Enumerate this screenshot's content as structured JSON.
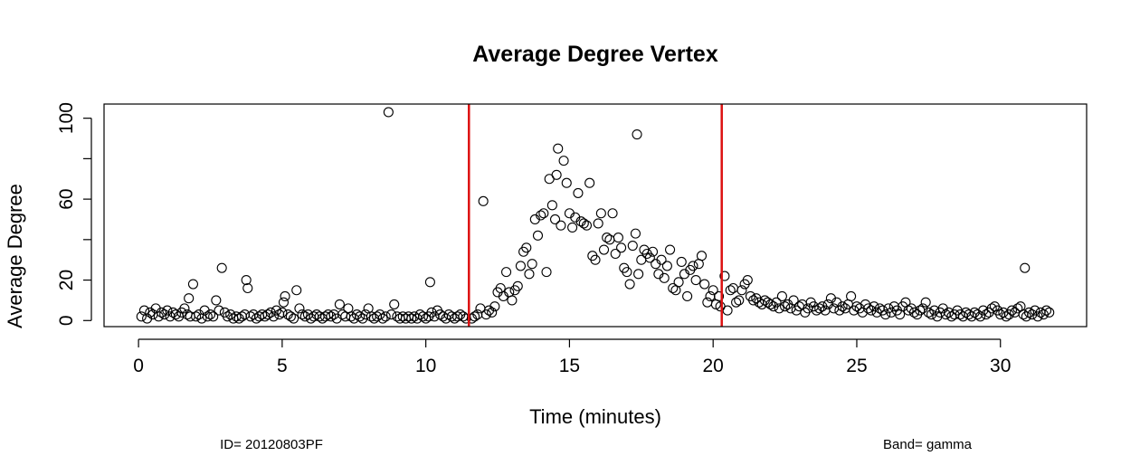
{
  "chart_data": {
    "type": "scatter",
    "title": "Average Degree Vertex",
    "xlabel": "Time (minutes)",
    "ylabel": "Average Degree",
    "xlim": [
      -1.2,
      33
    ],
    "ylim": [
      -3,
      107
    ],
    "x_ticks": [
      0,
      5,
      10,
      15,
      20,
      25,
      30
    ],
    "y_ticks": [
      0,
      20,
      40,
      60,
      80,
      100
    ],
    "y_tick_labels": [
      "0",
      "20",
      "",
      "60",
      "",
      "100"
    ],
    "vlines": [
      {
        "x": 11.5,
        "color": "#dd1111"
      },
      {
        "x": 20.3,
        "color": "#dd1111"
      }
    ],
    "marker": "open-circle",
    "grid": false,
    "footer_left": "ID= 20120803PF",
    "footer_right": "Band= gamma",
    "points": [
      [
        0.1,
        2
      ],
      [
        0.2,
        5
      ],
      [
        0.3,
        1
      ],
      [
        0.4,
        4
      ],
      [
        0.5,
        3
      ],
      [
        0.6,
        6
      ],
      [
        0.7,
        2
      ],
      [
        0.8,
        4
      ],
      [
        0.9,
        3
      ],
      [
        1.0,
        5
      ],
      [
        1.1,
        2
      ],
      [
        1.2,
        4
      ],
      [
        1.3,
        3
      ],
      [
        1.4,
        2
      ],
      [
        1.5,
        4
      ],
      [
        1.6,
        6
      ],
      [
        1.7,
        3
      ],
      [
        1.75,
        11
      ],
      [
        1.8,
        2
      ],
      [
        1.9,
        18
      ],
      [
        2.0,
        2
      ],
      [
        2.1,
        3
      ],
      [
        2.2,
        1
      ],
      [
        2.3,
        5
      ],
      [
        2.4,
        2
      ],
      [
        2.5,
        3
      ],
      [
        2.6,
        2
      ],
      [
        2.7,
        10
      ],
      [
        2.8,
        5
      ],
      [
        2.9,
        26
      ],
      [
        3.0,
        4
      ],
      [
        3.1,
        2
      ],
      [
        3.2,
        3
      ],
      [
        3.3,
        1
      ],
      [
        3.4,
        2
      ],
      [
        3.5,
        1
      ],
      [
        3.6,
        2
      ],
      [
        3.7,
        3
      ],
      [
        3.75,
        20
      ],
      [
        3.8,
        16
      ],
      [
        3.9,
        2
      ],
      [
        4.0,
        3
      ],
      [
        4.1,
        1
      ],
      [
        4.2,
        2
      ],
      [
        4.3,
        3
      ],
      [
        4.4,
        2
      ],
      [
        4.5,
        3
      ],
      [
        4.6,
        4
      ],
      [
        4.7,
        2
      ],
      [
        4.8,
        5
      ],
      [
        4.9,
        3
      ],
      [
        5.0,
        4
      ],
      [
        5.05,
        9
      ],
      [
        5.1,
        12
      ],
      [
        5.2,
        3
      ],
      [
        5.3,
        2
      ],
      [
        5.4,
        1
      ],
      [
        5.5,
        15
      ],
      [
        5.6,
        6
      ],
      [
        5.7,
        3
      ],
      [
        5.8,
        2
      ],
      [
        5.9,
        3
      ],
      [
        6.0,
        1
      ],
      [
        6.1,
        2
      ],
      [
        6.2,
        3
      ],
      [
        6.3,
        2
      ],
      [
        6.4,
        1
      ],
      [
        6.5,
        2
      ],
      [
        6.6,
        3
      ],
      [
        6.7,
        2
      ],
      [
        6.8,
        3
      ],
      [
        6.9,
        1
      ],
      [
        7.0,
        8
      ],
      [
        7.1,
        3
      ],
      [
        7.2,
        2
      ],
      [
        7.3,
        6
      ],
      [
        7.4,
        2
      ],
      [
        7.5,
        1
      ],
      [
        7.6,
        3
      ],
      [
        7.7,
        2
      ],
      [
        7.8,
        1
      ],
      [
        7.9,
        3
      ],
      [
        8.0,
        6
      ],
      [
        8.1,
        2
      ],
      [
        8.2,
        1
      ],
      [
        8.3,
        2
      ],
      [
        8.4,
        3
      ],
      [
        8.5,
        1
      ],
      [
        8.6,
        2
      ],
      [
        8.7,
        103
      ],
      [
        8.8,
        3
      ],
      [
        8.9,
        8
      ],
      [
        9.0,
        2
      ],
      [
        9.1,
        1
      ],
      [
        9.2,
        2
      ],
      [
        9.3,
        1
      ],
      [
        9.4,
        2
      ],
      [
        9.5,
        1
      ],
      [
        9.6,
        2
      ],
      [
        9.7,
        1
      ],
      [
        9.8,
        3
      ],
      [
        9.9,
        2
      ],
      [
        10.0,
        1
      ],
      [
        10.1,
        2
      ],
      [
        10.15,
        19
      ],
      [
        10.2,
        4
      ],
      [
        10.3,
        2
      ],
      [
        10.4,
        5
      ],
      [
        10.5,
        3
      ],
      [
        10.6,
        2
      ],
      [
        10.7,
        1
      ],
      [
        10.8,
        3
      ],
      [
        10.9,
        2
      ],
      [
        11.0,
        1
      ],
      [
        11.1,
        2
      ],
      [
        11.2,
        3
      ],
      [
        11.3,
        2
      ],
      [
        11.4,
        1
      ],
      [
        11.6,
        1
      ],
      [
        11.7,
        2
      ],
      [
        11.8,
        3
      ],
      [
        11.9,
        6
      ],
      [
        12.0,
        59
      ],
      [
        12.1,
        3
      ],
      [
        12.2,
        5
      ],
      [
        12.3,
        4
      ],
      [
        12.4,
        7
      ],
      [
        12.5,
        14
      ],
      [
        12.6,
        16
      ],
      [
        12.7,
        12
      ],
      [
        12.8,
        24
      ],
      [
        12.9,
        14
      ],
      [
        13.0,
        10
      ],
      [
        13.1,
        15
      ],
      [
        13.2,
        17
      ],
      [
        13.3,
        27
      ],
      [
        13.4,
        34
      ],
      [
        13.5,
        36
      ],
      [
        13.6,
        23
      ],
      [
        13.7,
        28
      ],
      [
        13.8,
        50
      ],
      [
        13.9,
        42
      ],
      [
        14.0,
        52
      ],
      [
        14.1,
        53
      ],
      [
        14.2,
        24
      ],
      [
        14.3,
        70
      ],
      [
        14.4,
        57
      ],
      [
        14.5,
        50
      ],
      [
        14.55,
        72
      ],
      [
        14.6,
        85
      ],
      [
        14.7,
        47
      ],
      [
        14.8,
        79
      ],
      [
        14.9,
        68
      ],
      [
        15.0,
        53
      ],
      [
        15.1,
        46
      ],
      [
        15.2,
        51
      ],
      [
        15.3,
        63
      ],
      [
        15.4,
        49
      ],
      [
        15.5,
        48
      ],
      [
        15.6,
        47
      ],
      [
        15.7,
        68
      ],
      [
        15.8,
        32
      ],
      [
        15.9,
        30
      ],
      [
        16.0,
        48
      ],
      [
        16.1,
        53
      ],
      [
        16.2,
        35
      ],
      [
        16.3,
        41
      ],
      [
        16.4,
        40
      ],
      [
        16.5,
        53
      ],
      [
        16.6,
        33
      ],
      [
        16.7,
        41
      ],
      [
        16.8,
        36
      ],
      [
        16.9,
        26
      ],
      [
        17.0,
        24
      ],
      [
        17.1,
        18
      ],
      [
        17.2,
        37
      ],
      [
        17.3,
        43
      ],
      [
        17.35,
        92
      ],
      [
        17.4,
        23
      ],
      [
        17.5,
        30
      ],
      [
        17.6,
        35
      ],
      [
        17.7,
        33
      ],
      [
        17.8,
        31
      ],
      [
        17.9,
        34
      ],
      [
        18.0,
        28
      ],
      [
        18.1,
        23
      ],
      [
        18.2,
        30
      ],
      [
        18.3,
        21
      ],
      [
        18.4,
        27
      ],
      [
        18.5,
        35
      ],
      [
        18.6,
        16
      ],
      [
        18.7,
        15
      ],
      [
        18.8,
        19
      ],
      [
        18.9,
        29
      ],
      [
        19.0,
        23
      ],
      [
        19.1,
        12
      ],
      [
        19.2,
        25
      ],
      [
        19.3,
        27
      ],
      [
        19.4,
        20
      ],
      [
        19.5,
        28
      ],
      [
        19.6,
        32
      ],
      [
        19.7,
        18
      ],
      [
        19.8,
        9
      ],
      [
        19.9,
        12
      ],
      [
        20.0,
        15
      ],
      [
        20.1,
        8
      ],
      [
        20.2,
        12
      ],
      [
        20.25,
        7
      ],
      [
        20.4,
        22
      ],
      [
        20.5,
        5
      ],
      [
        20.6,
        15
      ],
      [
        20.7,
        16
      ],
      [
        20.8,
        9
      ],
      [
        20.9,
        10
      ],
      [
        21.0,
        15
      ],
      [
        21.1,
        18
      ],
      [
        21.2,
        20
      ],
      [
        21.3,
        12
      ],
      [
        21.4,
        10
      ],
      [
        21.5,
        11
      ],
      [
        21.6,
        9
      ],
      [
        21.7,
        8
      ],
      [
        21.8,
        10
      ],
      [
        21.9,
        9
      ],
      [
        22.0,
        8
      ],
      [
        22.1,
        7
      ],
      [
        22.2,
        9
      ],
      [
        22.3,
        6
      ],
      [
        22.4,
        12
      ],
      [
        22.5,
        7
      ],
      [
        22.6,
        8
      ],
      [
        22.7,
        6
      ],
      [
        22.8,
        10
      ],
      [
        22.9,
        5
      ],
      [
        23.0,
        7
      ],
      [
        23.1,
        8
      ],
      [
        23.2,
        4
      ],
      [
        23.3,
        6
      ],
      [
        23.4,
        9
      ],
      [
        23.5,
        7
      ],
      [
        23.6,
        5
      ],
      [
        23.7,
        6
      ],
      [
        23.8,
        7
      ],
      [
        23.9,
        5
      ],
      [
        24.0,
        8
      ],
      [
        24.1,
        11
      ],
      [
        24.2,
        6
      ],
      [
        24.3,
        9
      ],
      [
        24.4,
        5
      ],
      [
        24.5,
        7
      ],
      [
        24.6,
        6
      ],
      [
        24.7,
        8
      ],
      [
        24.8,
        12
      ],
      [
        24.9,
        5
      ],
      [
        25.0,
        7
      ],
      [
        25.1,
        6
      ],
      [
        25.2,
        4
      ],
      [
        25.3,
        8
      ],
      [
        25.4,
        6
      ],
      [
        25.5,
        5
      ],
      [
        25.6,
        7
      ],
      [
        25.7,
        4
      ],
      [
        25.8,
        6
      ],
      [
        25.9,
        5
      ],
      [
        26.0,
        3
      ],
      [
        26.1,
        6
      ],
      [
        26.2,
        4
      ],
      [
        26.3,
        7
      ],
      [
        26.4,
        5
      ],
      [
        26.5,
        3
      ],
      [
        26.6,
        7
      ],
      [
        26.7,
        9
      ],
      [
        26.8,
        5
      ],
      [
        26.9,
        6
      ],
      [
        27.0,
        4
      ],
      [
        27.1,
        3
      ],
      [
        27.2,
        5
      ],
      [
        27.3,
        6
      ],
      [
        27.4,
        9
      ],
      [
        27.5,
        4
      ],
      [
        27.6,
        3
      ],
      [
        27.7,
        5
      ],
      [
        27.8,
        2
      ],
      [
        27.9,
        4
      ],
      [
        28.0,
        6
      ],
      [
        28.1,
        3
      ],
      [
        28.2,
        4
      ],
      [
        28.3,
        2
      ],
      [
        28.4,
        3
      ],
      [
        28.5,
        5
      ],
      [
        28.6,
        3
      ],
      [
        28.7,
        2
      ],
      [
        28.8,
        4
      ],
      [
        28.9,
        3
      ],
      [
        29.0,
        2
      ],
      [
        29.1,
        4
      ],
      [
        29.2,
        3
      ],
      [
        29.3,
        2
      ],
      [
        29.4,
        5
      ],
      [
        29.5,
        3
      ],
      [
        29.6,
        4
      ],
      [
        29.7,
        6
      ],
      [
        29.8,
        7
      ],
      [
        29.9,
        5
      ],
      [
        30.0,
        3
      ],
      [
        30.1,
        4
      ],
      [
        30.2,
        2
      ],
      [
        30.3,
        3
      ],
      [
        30.4,
        5
      ],
      [
        30.5,
        4
      ],
      [
        30.6,
        6
      ],
      [
        30.7,
        7
      ],
      [
        30.8,
        3
      ],
      [
        30.85,
        26
      ],
      [
        30.9,
        2
      ],
      [
        31.0,
        4
      ],
      [
        31.1,
        3
      ],
      [
        31.2,
        5
      ],
      [
        31.3,
        2
      ],
      [
        31.4,
        4
      ],
      [
        31.5,
        3
      ],
      [
        31.6,
        5
      ],
      [
        31.7,
        4
      ]
    ]
  }
}
